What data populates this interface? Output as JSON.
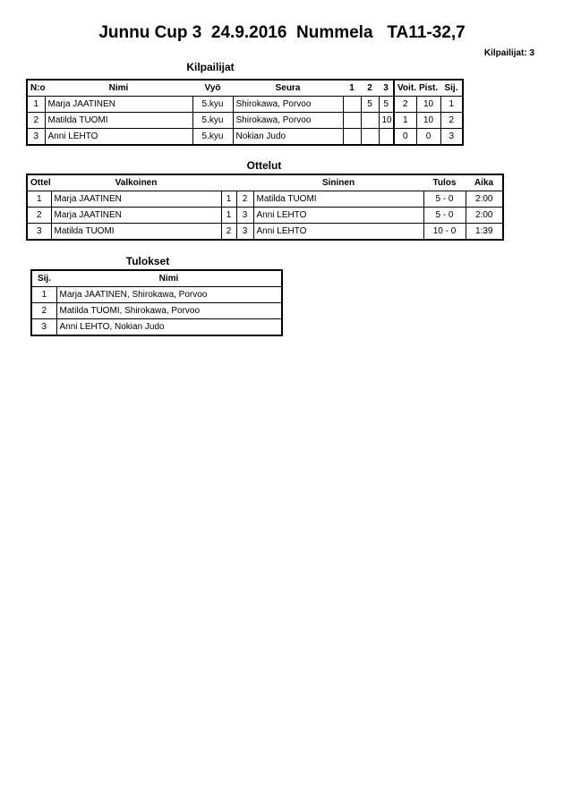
{
  "title": "Junnu Cup 3  24.9.2016  Nummela   TA11-32,7",
  "competitor_count": "Kilpailijat: 3",
  "competitors": {
    "heading": "Kilpailijat",
    "headers": [
      "N:o",
      "Nimi",
      "Vyö",
      "Seura",
      "1",
      "2",
      "3",
      "Voit.",
      "Pist.",
      "Sij."
    ],
    "rows": [
      [
        "1",
        "Marja JAATINEN",
        "5.kyu",
        "Shirokawa, Porvoo",
        "",
        "5",
        "5",
        "2",
        "10",
        "1"
      ],
      [
        "2",
        "Matilda TUOMI",
        "5.kyu",
        "Shirokawa, Porvoo",
        "",
        "",
        "10",
        "1",
        "10",
        "2"
      ],
      [
        "3",
        "Anni LEHTO",
        "5.kyu",
        "Nokian Judo",
        "",
        "",
        "",
        "0",
        "0",
        "3"
      ]
    ]
  },
  "matches": {
    "heading": "Ottelut",
    "headers": [
      "Ottelu",
      "Valkoinen",
      "",
      "",
      "Sininen",
      "Tulos",
      "Aika"
    ],
    "rows": [
      [
        "1",
        "Marja JAATINEN",
        "1",
        "2",
        "Matilda TUOMI",
        "5 - 0",
        "2:00"
      ],
      [
        "2",
        "Marja JAATINEN",
        "1",
        "3",
        "Anni LEHTO",
        "5 - 0",
        "2:00"
      ],
      [
        "3",
        "Matilda TUOMI",
        "2",
        "3",
        "Anni LEHTO",
        "10 - 0",
        "1:39"
      ]
    ]
  },
  "results": {
    "heading": "Tulokset",
    "headers": [
      "Sij.",
      "Nimi"
    ],
    "rows": [
      [
        "1",
        "Marja JAATINEN, Shirokawa, Porvoo"
      ],
      [
        "2",
        "Matilda TUOMI, Shirokawa, Porvoo"
      ],
      [
        "3",
        "Anni LEHTO, Nokian Judo"
      ]
    ]
  }
}
